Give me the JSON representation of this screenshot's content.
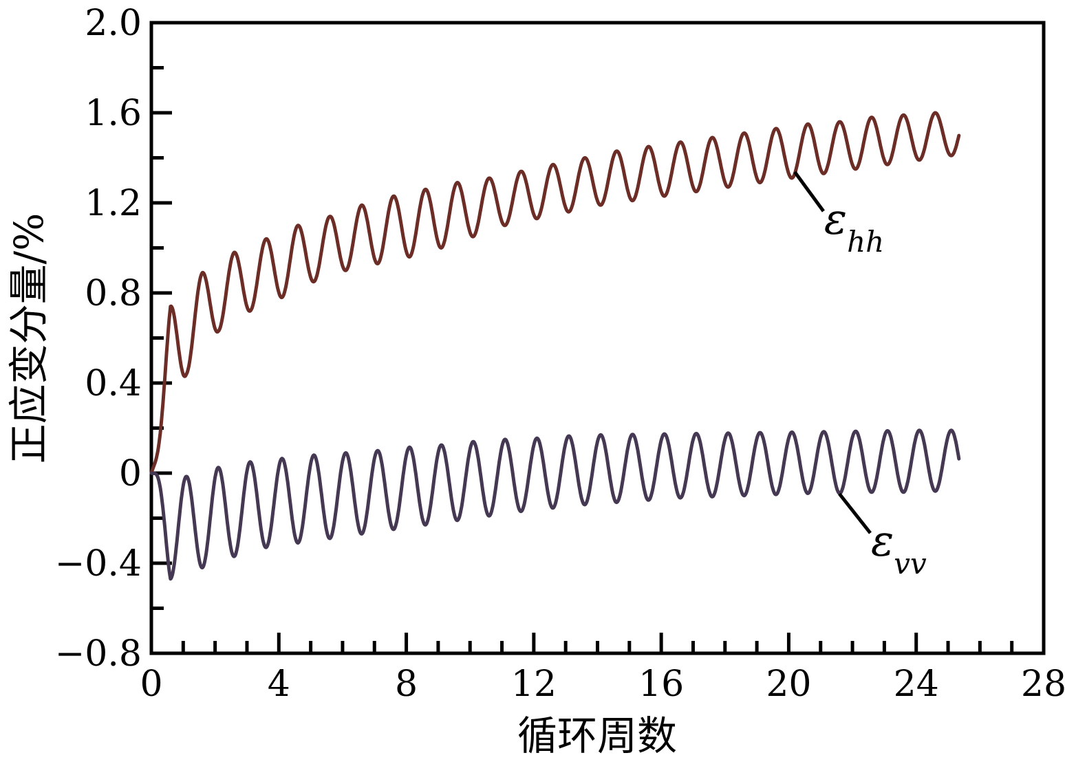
{
  "figure": {
    "background_color": "#ffffff",
    "axis_color": "#000000"
  },
  "chart_data": {
    "type": "line",
    "title": "",
    "xlabel": "循环周数",
    "ylabel": "正应变分量/%",
    "xlim": [
      0,
      28
    ],
    "ylim": [
      -0.8,
      2.0
    ],
    "grid": false,
    "legend_position": "inline-annotations",
    "x_ticks": {
      "major": [
        0,
        4,
        8,
        12,
        16,
        20,
        24,
        28
      ],
      "labels": [
        "0",
        "4",
        "8",
        "12",
        "16",
        "20",
        "24",
        "28"
      ],
      "minor_step": 1
    },
    "y_ticks": {
      "major": [
        -0.8,
        -0.4,
        0,
        0.4,
        0.8,
        1.2,
        1.6,
        2.0
      ],
      "labels": [
        "−0.8",
        "−0.4",
        "0",
        "0.4",
        "0.8",
        "1.2",
        "1.6",
        "2.0"
      ],
      "minor_step": 0.2
    },
    "series": [
      {
        "name": "epsilon_hh",
        "label_symbol": "ε",
        "label_subscript": "hh",
        "color": "#6b2d26",
        "period_cycles": 1,
        "sine_phase": 0.35,
        "t_start": 0,
        "t_end": 25.35,
        "start_value": 0,
        "peaks": {
          "t": [
            0,
            0.6,
            1.6,
            2.6,
            3.6,
            4.6,
            5.6,
            6.6,
            7.6,
            8.6,
            9.6,
            10.6,
            11.6,
            12.6,
            13.6,
            14.6,
            15.6,
            16.6,
            17.6,
            18.6,
            19.6,
            20.6,
            21.6,
            22.6,
            23.6,
            24.6
          ],
          "y": [
            0,
            0.74,
            0.89,
            0.98,
            1.04,
            1.1,
            1.14,
            1.19,
            1.23,
            1.26,
            1.29,
            1.31,
            1.34,
            1.37,
            1.4,
            1.43,
            1.45,
            1.47,
            1.49,
            1.51,
            1.53,
            1.55,
            1.56,
            1.58,
            1.59,
            1.6
          ]
        },
        "troughs": {
          "t": [
            0,
            1.1,
            2.1,
            3.1,
            4.1,
            5.1,
            6.1,
            7.1,
            8.1,
            9.1,
            10.1,
            11.1,
            12.1,
            13.1,
            14.1,
            15.1,
            16.1,
            17.1,
            18.1,
            19.1,
            20.1,
            21.1,
            22.1,
            23.1,
            24.1,
            25.1
          ],
          "y": [
            0,
            0.44,
            0.63,
            0.72,
            0.78,
            0.85,
            0.9,
            0.93,
            0.96,
            1.0,
            1.05,
            1.1,
            1.13,
            1.16,
            1.19,
            1.21,
            1.23,
            1.25,
            1.27,
            1.29,
            1.31,
            1.33,
            1.35,
            1.37,
            1.39,
            1.41
          ]
        }
      },
      {
        "name": "epsilon_vv",
        "label_symbol": "ε",
        "label_subscript": "vv",
        "color": "#453853",
        "period_cycles": 1,
        "sine_phase": -0.15,
        "t_start": 0,
        "t_end": 25.35,
        "start_value": 0,
        "peaks": {
          "t": [
            0,
            1.1,
            2.1,
            3.1,
            4.1,
            5.1,
            6.1,
            7.1,
            8.1,
            9.1,
            10.1,
            11.1,
            12.1,
            13.1,
            14.1,
            15.1,
            16.1,
            17.1,
            18.1,
            19.1,
            20.1,
            21.1,
            22.1,
            23.1,
            24.1,
            25.1
          ],
          "y": [
            0,
            -0.015,
            0.025,
            0.05,
            0.065,
            0.08,
            0.09,
            0.1,
            0.115,
            0.125,
            0.14,
            0.15,
            0.155,
            0.165,
            0.17,
            0.172,
            0.174,
            0.176,
            0.178,
            0.18,
            0.182,
            0.184,
            0.186,
            0.188,
            0.19,
            0.19
          ]
        },
        "troughs": {
          "t": [
            0,
            0.6,
            1.6,
            2.6,
            3.6,
            4.6,
            5.6,
            6.6,
            7.6,
            8.6,
            9.6,
            10.6,
            11.6,
            12.6,
            13.6,
            14.6,
            15.6,
            16.6,
            17.6,
            18.6,
            19.6,
            20.6,
            21.6,
            22.6,
            23.6,
            24.6
          ],
          "y": [
            0,
            -0.47,
            -0.42,
            -0.37,
            -0.33,
            -0.31,
            -0.29,
            -0.27,
            -0.25,
            -0.23,
            -0.21,
            -0.19,
            -0.17,
            -0.155,
            -0.14,
            -0.13,
            -0.12,
            -0.11,
            -0.105,
            -0.1,
            -0.095,
            -0.09,
            -0.09,
            -0.085,
            -0.085,
            -0.08
          ]
        }
      }
    ],
    "annotations": [
      {
        "series": "epsilon_hh",
        "symbol": "ε",
        "subscript": "hh",
        "leader": {
          "x1": 20.19,
          "y1": 1.337,
          "x2": 21.09,
          "y2": 1.163
        },
        "label_at": {
          "x": 21.11,
          "y": 1.062
        }
      },
      {
        "series": "epsilon_vv",
        "symbol": "ε",
        "subscript": "vv",
        "leader": {
          "x1": 21.59,
          "y1": -0.092,
          "x2": 22.56,
          "y2": -0.266
        },
        "label_at": {
          "x": 22.58,
          "y": -0.366
        }
      }
    ]
  }
}
